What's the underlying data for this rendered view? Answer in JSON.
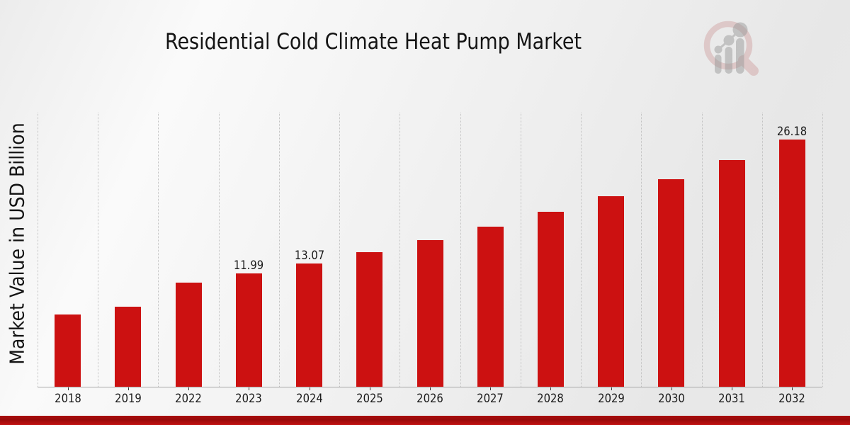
{
  "header": {
    "title": "Residential Cold Climate Heat Pump Market"
  },
  "chart_data": {
    "type": "bar",
    "title": "Residential Cold Climate Heat Pump Market",
    "xlabel": "",
    "ylabel": "Market Value in USD Billion",
    "categories": [
      "2018",
      "2019",
      "2022",
      "2023",
      "2024",
      "2025",
      "2026",
      "2027",
      "2028",
      "2029",
      "2030",
      "2031",
      "2032"
    ],
    "values": [
      7.62,
      8.47,
      10.99,
      11.99,
      13.07,
      14.26,
      15.55,
      16.96,
      18.49,
      20.17,
      22.01,
      23.99,
      26.18
    ],
    "bar_labels": [
      "",
      "",
      "",
      "11.99",
      "13.07",
      "",
      "",
      "",
      "",
      "",
      "",
      "",
      "26.18"
    ],
    "ylim": [
      0,
      29.1
    ],
    "grid": {
      "vertical_dotted": true,
      "horizontal": false
    },
    "legend_position": "none",
    "bar_color": "#cc1111"
  },
  "branding": {
    "watermark_icon": "market-research-future-magnifier-chart-logo",
    "logo_ring_color": "#cf9f9f",
    "logo_figure_color": "#9b9b9b"
  },
  "footer": {
    "stripe_top_color": "#ab0f0f",
    "stripe_bottom_color": "#c21212"
  }
}
